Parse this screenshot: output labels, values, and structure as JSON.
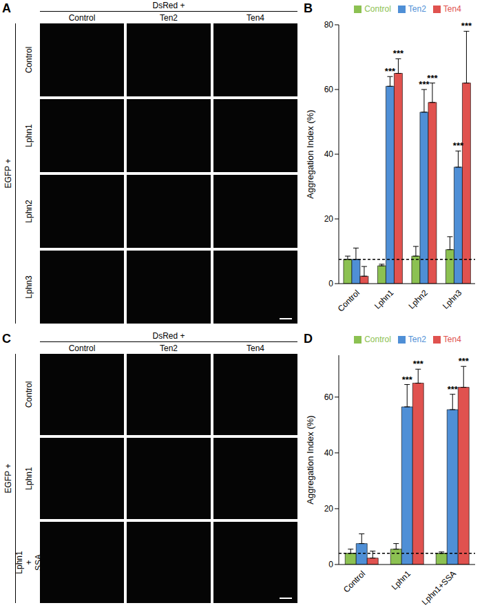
{
  "image_panels": [
    {
      "label": "A",
      "column_header": "DsRed +",
      "row_header": "EGFP +",
      "columns": [
        "Control",
        "Ten2",
        "Ten4"
      ],
      "rows": [
        "Control",
        "Lphn1",
        "Lphn2",
        "Lphn3"
      ]
    },
    {
      "label": "C",
      "column_header": "DsRed +",
      "row_header": "EGFP +",
      "columns": [
        "Control",
        "Ten2",
        "Ten4"
      ],
      "rows": [
        "Control",
        "Lphn1",
        "Lphn1 + SSA"
      ]
    }
  ],
  "chart_data": [
    {
      "label": "B",
      "type": "bar",
      "y_label": "Aggregation Index (%)",
      "categories": [
        "Control",
        "Lphn1",
        "Lphn2",
        "Lphn3"
      ],
      "series": [
        {
          "name": "Control",
          "color": "#8cc152",
          "values": [
            7.5,
            5.5,
            8.5,
            10.5
          ],
          "errors": [
            1,
            0.5,
            3,
            4
          ],
          "significance": [
            null,
            null,
            null,
            null
          ]
        },
        {
          "name": "Ten2",
          "color": "#4f8fd6",
          "values": [
            7.5,
            61,
            53,
            36
          ],
          "errors": [
            3.5,
            3,
            7,
            5
          ],
          "significance": [
            null,
            "***",
            "***",
            "***"
          ]
        },
        {
          "name": "Ten4",
          "color": "#e0524f",
          "values": [
            2.3,
            65,
            56,
            62
          ],
          "errors": [
            3,
            4.5,
            6,
            16
          ],
          "significance": [
            null,
            "***",
            "***",
            "***"
          ]
        }
      ],
      "ylim": [
        0,
        80
      ],
      "yticks": [
        0,
        20,
        40,
        60,
        80
      ],
      "reference_line": 7.5,
      "legend": "top"
    },
    {
      "label": "D",
      "type": "bar",
      "y_label": "Aggregation Index (%)",
      "categories": [
        "Control",
        "Lphn1",
        "Lphn1+SSA"
      ],
      "series": [
        {
          "name": "Control",
          "color": "#8cc152",
          "values": [
            4,
            5.5,
            4
          ],
          "errors": [
            1.5,
            2,
            0.5
          ],
          "significance": [
            null,
            null,
            null
          ]
        },
        {
          "name": "Ten2",
          "color": "#4f8fd6",
          "values": [
            7.5,
            56.5,
            55.5
          ],
          "errors": [
            3.5,
            8,
            5.5
          ],
          "significance": [
            null,
            "***",
            "***"
          ]
        },
        {
          "name": "Ten4",
          "color": "#e0524f",
          "values": [
            2.3,
            65,
            63.5
          ],
          "errors": [
            2.5,
            5,
            7.5
          ],
          "significance": [
            null,
            "***",
            "***"
          ]
        }
      ],
      "ylim": [
        0,
        75
      ],
      "yticks": [
        0,
        20,
        40,
        60
      ],
      "reference_line": 4,
      "legend": "top"
    }
  ]
}
